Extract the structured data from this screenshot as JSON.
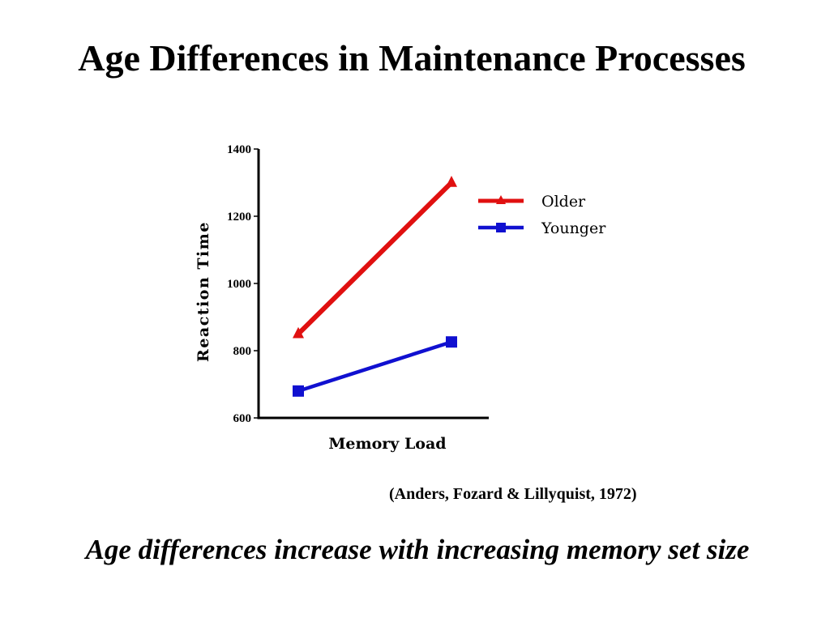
{
  "slide": {
    "title": "Age Differences in Maintenance Processes",
    "citation": "(Anders, Fozard & Lillyquist, 1972)",
    "caption": "Age differences increase with increasing memory set size"
  },
  "chart_data": {
    "type": "line",
    "title": "",
    "xlabel": "Memory Load",
    "ylabel": "Reaction Time",
    "ylim": [
      600,
      1400
    ],
    "yticks": [
      600,
      800,
      1000,
      1200,
      1400
    ],
    "x": [
      1,
      2
    ],
    "xticks_shown": false,
    "grid": false,
    "legend_position": "right",
    "series": [
      {
        "name": "Older",
        "values": [
          850,
          1300
        ],
        "color": "#e01010",
        "marker": "triangle"
      },
      {
        "name": "Younger",
        "values": [
          680,
          826
        ],
        "color": "#1010d0",
        "marker": "square"
      }
    ]
  }
}
